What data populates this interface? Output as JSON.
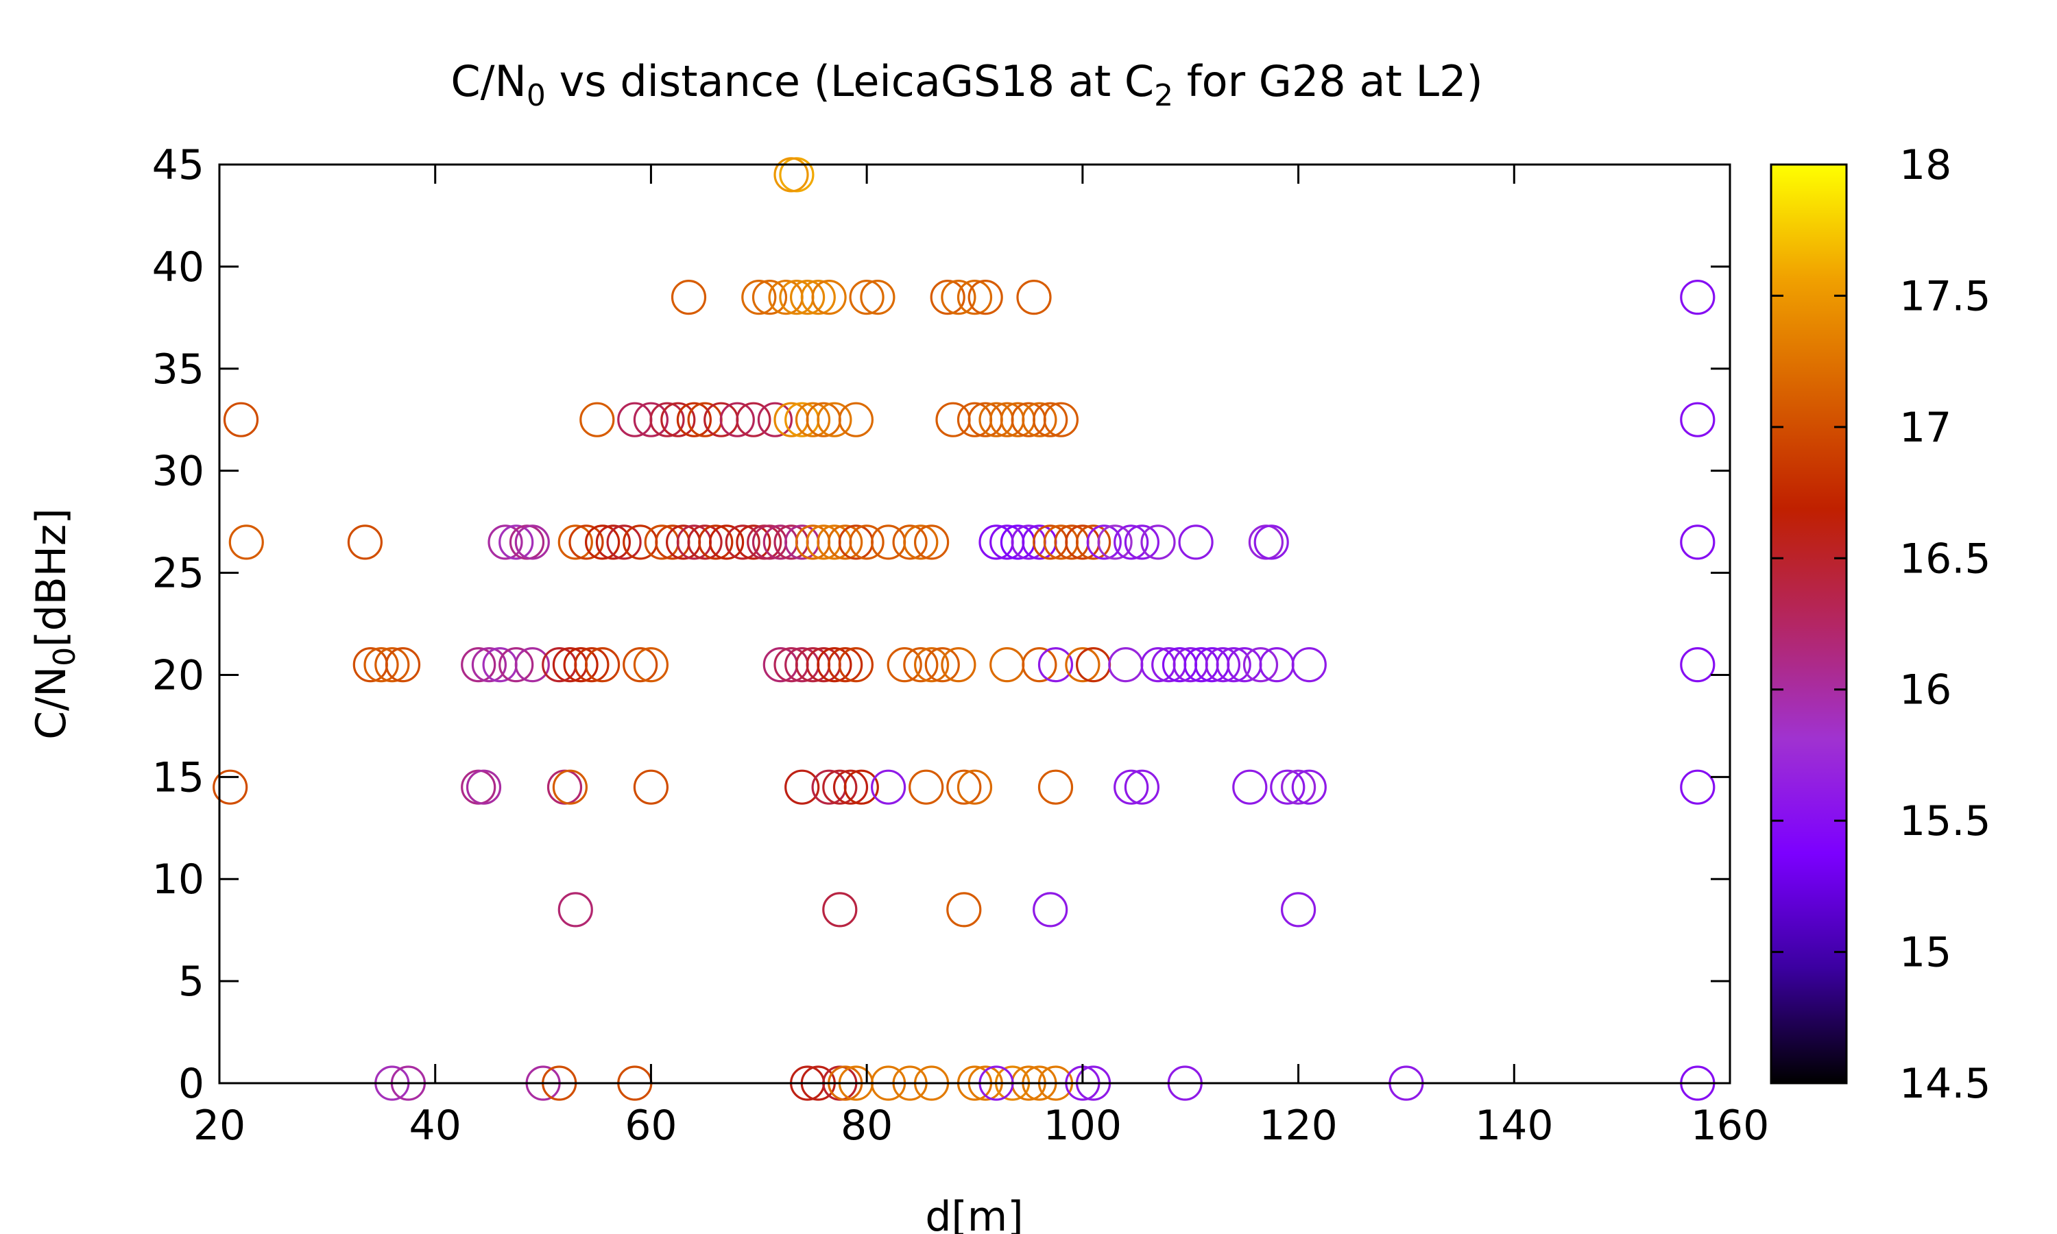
{
  "chart_data": {
    "type": "scatter",
    "title": {
      "pre": "C/N",
      "sub": "0",
      "post": " vs distance (LeicaGS18 at C",
      "sub2": "2",
      "post2": " for G28 at L2)"
    },
    "xlabel": "d[m]",
    "ylabel": {
      "pre": "C/N",
      "sub": "0",
      "post": "[dBHz]"
    },
    "xlim": [
      20,
      160
    ],
    "ylim": [
      0,
      45
    ],
    "xticks": [
      "20",
      "40",
      "60",
      "80",
      "100",
      "120",
      "140",
      "160"
    ],
    "yticks": [
      "0",
      "5",
      "10",
      "15",
      "20",
      "25",
      "30",
      "35",
      "40",
      "45"
    ],
    "colorbar": {
      "range": [
        14.5,
        18
      ],
      "ticks": [
        "14.5",
        "15",
        "15.5",
        "16",
        "16.5",
        "17",
        "17.5",
        "18"
      ],
      "palette": [
        "#000000",
        "#3b00a0",
        "#7c00ff",
        "#a032d0",
        "#b42664",
        "#c02000",
        "#d86000",
        "#f0a000",
        "#ffff00"
      ]
    },
    "grid": false,
    "marker": "open-circle",
    "points": [
      [
        73.5,
        44.5,
        17.6
      ],
      [
        73,
        44.5,
        17.5
      ],
      [
        63.5,
        38.5,
        17.1
      ],
      [
        70,
        38.5,
        17.2
      ],
      [
        71,
        38.5,
        17.2
      ],
      [
        72.5,
        38.5,
        17.3
      ],
      [
        73.5,
        38.5,
        17.4
      ],
      [
        74.5,
        38.5,
        17.4
      ],
      [
        75.5,
        38.5,
        17.4
      ],
      [
        76.5,
        38.5,
        17.3
      ],
      [
        80,
        38.5,
        17.2
      ],
      [
        81,
        38.5,
        17.2
      ],
      [
        87.5,
        38.5,
        17.1
      ],
      [
        88.5,
        38.5,
        17.2
      ],
      [
        90,
        38.5,
        17.2
      ],
      [
        91,
        38.5,
        17.1
      ],
      [
        95.5,
        38.5,
        17.1
      ],
      [
        157,
        38.5,
        15.5
      ],
      [
        22,
        32.5,
        17.0
      ],
      [
        55,
        32.5,
        17.1
      ],
      [
        58.5,
        32.5,
        16.3
      ],
      [
        60,
        32.5,
        16.3
      ],
      [
        61.5,
        32.5,
        16.4
      ],
      [
        62.5,
        32.5,
        16.5
      ],
      [
        64,
        32.5,
        16.8
      ],
      [
        65,
        32.5,
        16.9
      ],
      [
        66.5,
        32.5,
        16.5
      ],
      [
        68,
        32.5,
        16.3
      ],
      [
        69.5,
        32.5,
        16.4
      ],
      [
        71.5,
        32.5,
        16.3
      ],
      [
        73,
        32.5,
        17.4
      ],
      [
        74,
        32.5,
        17.5
      ],
      [
        75,
        32.5,
        17.3
      ],
      [
        76,
        32.5,
        17.2
      ],
      [
        77,
        32.5,
        17.3
      ],
      [
        79,
        32.5,
        17.2
      ],
      [
        88,
        32.5,
        17.1
      ],
      [
        90,
        32.5,
        17.1
      ],
      [
        91,
        32.5,
        17.1
      ],
      [
        92,
        32.5,
        17.2
      ],
      [
        93,
        32.5,
        17.2
      ],
      [
        94,
        32.5,
        17.2
      ],
      [
        95,
        32.5,
        17.1
      ],
      [
        96,
        32.5,
        17.2
      ],
      [
        97,
        32.5,
        17.1
      ],
      [
        98,
        32.5,
        17.1
      ],
      [
        157,
        32.5,
        15.5
      ],
      [
        22.5,
        26.5,
        17.1
      ],
      [
        33.5,
        26.5,
        17.0
      ],
      [
        46.5,
        26.5,
        16.0
      ],
      [
        47.5,
        26.5,
        15.9
      ],
      [
        48.5,
        26.5,
        16.1
      ],
      [
        49,
        26.5,
        16.0
      ],
      [
        53,
        26.5,
        17.1
      ],
      [
        54,
        26.5,
        16.9
      ],
      [
        55.5,
        26.5,
        16.7
      ],
      [
        56.5,
        26.5,
        16.6
      ],
      [
        57.5,
        26.5,
        16.5
      ],
      [
        59,
        26.5,
        16.8
      ],
      [
        61,
        26.5,
        17.0
      ],
      [
        62,
        26.5,
        16.9
      ],
      [
        63,
        26.5,
        16.6
      ],
      [
        64,
        26.5,
        16.4
      ],
      [
        65,
        26.5,
        16.5
      ],
      [
        66,
        26.5,
        16.8
      ],
      [
        67,
        26.5,
        16.7
      ],
      [
        68.5,
        26.5,
        16.5
      ],
      [
        69.5,
        26.5,
        16.6
      ],
      [
        70.5,
        26.5,
        16.4
      ],
      [
        71,
        26.5,
        16.3
      ],
      [
        72,
        26.5,
        16.2
      ],
      [
        73,
        26.5,
        16.3
      ],
      [
        74,
        26.5,
        16.1
      ],
      [
        75,
        26.5,
        17.2
      ],
      [
        76,
        26.5,
        17.3
      ],
      [
        77,
        26.5,
        17.3
      ],
      [
        78,
        26.5,
        17.2
      ],
      [
        79,
        26.5,
        16.9
      ],
      [
        80,
        26.5,
        17.1
      ],
      [
        82,
        26.5,
        17.1
      ],
      [
        84,
        26.5,
        17.1
      ],
      [
        85,
        26.5,
        17.2
      ],
      [
        86,
        26.5,
        17.1
      ],
      [
        92,
        26.5,
        15.5
      ],
      [
        93,
        26.5,
        15.5
      ],
      [
        94,
        26.5,
        15.4
      ],
      [
        95,
        26.5,
        15.6
      ],
      [
        96,
        26.5,
        15.5
      ],
      [
        97,
        26.5,
        17.0
      ],
      [
        98,
        26.5,
        17.1
      ],
      [
        99,
        26.5,
        17.0
      ],
      [
        100,
        26.5,
        16.9
      ],
      [
        101,
        26.5,
        17.0
      ],
      [
        102,
        26.5,
        15.6
      ],
      [
        103,
        26.5,
        15.8
      ],
      [
        104.5,
        26.5,
        15.6
      ],
      [
        105.5,
        26.5,
        15.6
      ],
      [
        107,
        26.5,
        15.7
      ],
      [
        110.5,
        26.5,
        15.6
      ],
      [
        117,
        26.5,
        15.7
      ],
      [
        117.5,
        26.5,
        15.6
      ],
      [
        157,
        26.5,
        15.5
      ],
      [
        34,
        20.5,
        17.0
      ],
      [
        35,
        20.5,
        17.1
      ],
      [
        36,
        20.5,
        17.1
      ],
      [
        37,
        20.5,
        17.0
      ],
      [
        44,
        20.5,
        16.1
      ],
      [
        45,
        20.5,
        16.0
      ],
      [
        46,
        20.5,
        15.9
      ],
      [
        47.5,
        20.5,
        16.1
      ],
      [
        49,
        20.5,
        16.0
      ],
      [
        51.5,
        20.5,
        16.5
      ],
      [
        52.5,
        20.5,
        16.6
      ],
      [
        53.5,
        20.5,
        16.7
      ],
      [
        54.5,
        20.5,
        16.8
      ],
      [
        55.5,
        20.5,
        16.9
      ],
      [
        59,
        20.5,
        17.0
      ],
      [
        60,
        20.5,
        17.1
      ],
      [
        72,
        20.5,
        16.2
      ],
      [
        73,
        20.5,
        16.3
      ],
      [
        74,
        20.5,
        16.3
      ],
      [
        75,
        20.5,
        16.4
      ],
      [
        76,
        20.5,
        16.5
      ],
      [
        77,
        20.5,
        16.7
      ],
      [
        78,
        20.5,
        16.8
      ],
      [
        79,
        20.5,
        16.9
      ],
      [
        83.5,
        20.5,
        17.1
      ],
      [
        85,
        20.5,
        17.1
      ],
      [
        86,
        20.5,
        17.2
      ],
      [
        87,
        20.5,
        17.1
      ],
      [
        88.5,
        20.5,
        17.2
      ],
      [
        93,
        20.5,
        17.2
      ],
      [
        96,
        20.5,
        17.1
      ],
      [
        97.5,
        20.5,
        15.6
      ],
      [
        100,
        20.5,
        17.2
      ],
      [
        101,
        20.5,
        16.8
      ],
      [
        104,
        20.5,
        15.7
      ],
      [
        107,
        20.5,
        15.6
      ],
      [
        108,
        20.5,
        15.6
      ],
      [
        109,
        20.5,
        15.5
      ],
      [
        110,
        20.5,
        15.6
      ],
      [
        111,
        20.5,
        15.5
      ],
      [
        112,
        20.5,
        15.5
      ],
      [
        113,
        20.5,
        15.6
      ],
      [
        114,
        20.5,
        15.6
      ],
      [
        115,
        20.5,
        15.6
      ],
      [
        116.5,
        20.5,
        15.7
      ],
      [
        118,
        20.5,
        15.6
      ],
      [
        121,
        20.5,
        15.6
      ],
      [
        157,
        20.5,
        15.5
      ],
      [
        21,
        14.5,
        17.0
      ],
      [
        44,
        14.5,
        16.1
      ],
      [
        44.5,
        14.5,
        16.0
      ],
      [
        52,
        14.5,
        16.2
      ],
      [
        52.5,
        14.5,
        17.1
      ],
      [
        60,
        14.5,
        17.0
      ],
      [
        74,
        14.5,
        16.6
      ],
      [
        76.5,
        14.5,
        16.4
      ],
      [
        77.5,
        14.5,
        16.5
      ],
      [
        78.5,
        14.5,
        16.6
      ],
      [
        79.5,
        14.5,
        16.7
      ],
      [
        82,
        14.5,
        15.6
      ],
      [
        85.5,
        14.5,
        17.1
      ],
      [
        89,
        14.5,
        17.1
      ],
      [
        90,
        14.5,
        17.2
      ],
      [
        97.5,
        14.5,
        17.1
      ],
      [
        104.5,
        14.5,
        15.6
      ],
      [
        105.5,
        14.5,
        15.6
      ],
      [
        115.5,
        14.5,
        15.6
      ],
      [
        119,
        14.5,
        15.6
      ],
      [
        120,
        14.5,
        15.7
      ],
      [
        121,
        14.5,
        15.6
      ],
      [
        157,
        14.5,
        15.5
      ],
      [
        53,
        8.5,
        16.2
      ],
      [
        77.5,
        8.5,
        16.4
      ],
      [
        89,
        8.5,
        17.1
      ],
      [
        97,
        8.5,
        15.6
      ],
      [
        120,
        8.5,
        15.6
      ],
      [
        36,
        0,
        15.9
      ],
      [
        37.5,
        0,
        16.0
      ],
      [
        50,
        0,
        16.0
      ],
      [
        51.5,
        0,
        17.0
      ],
      [
        58.5,
        0,
        17.0
      ],
      [
        74.5,
        0,
        16.6
      ],
      [
        75.5,
        0,
        16.6
      ],
      [
        77.5,
        0,
        16.5
      ],
      [
        78,
        0,
        17.2
      ],
      [
        79,
        0,
        17.3
      ],
      [
        82,
        0,
        17.3
      ],
      [
        84,
        0,
        17.3
      ],
      [
        86,
        0,
        17.3
      ],
      [
        90,
        0,
        17.3
      ],
      [
        91,
        0,
        17.3
      ],
      [
        93.5,
        0,
        17.4
      ],
      [
        95,
        0,
        17.3
      ],
      [
        96,
        0,
        17.3
      ],
      [
        97.5,
        0,
        17.3
      ],
      [
        92,
        0,
        15.6
      ],
      [
        100,
        0,
        15.6
      ],
      [
        101,
        0,
        15.6
      ],
      [
        109.5,
        0,
        15.6
      ],
      [
        130,
        0,
        15.6
      ],
      [
        157,
        0,
        15.5
      ]
    ]
  }
}
